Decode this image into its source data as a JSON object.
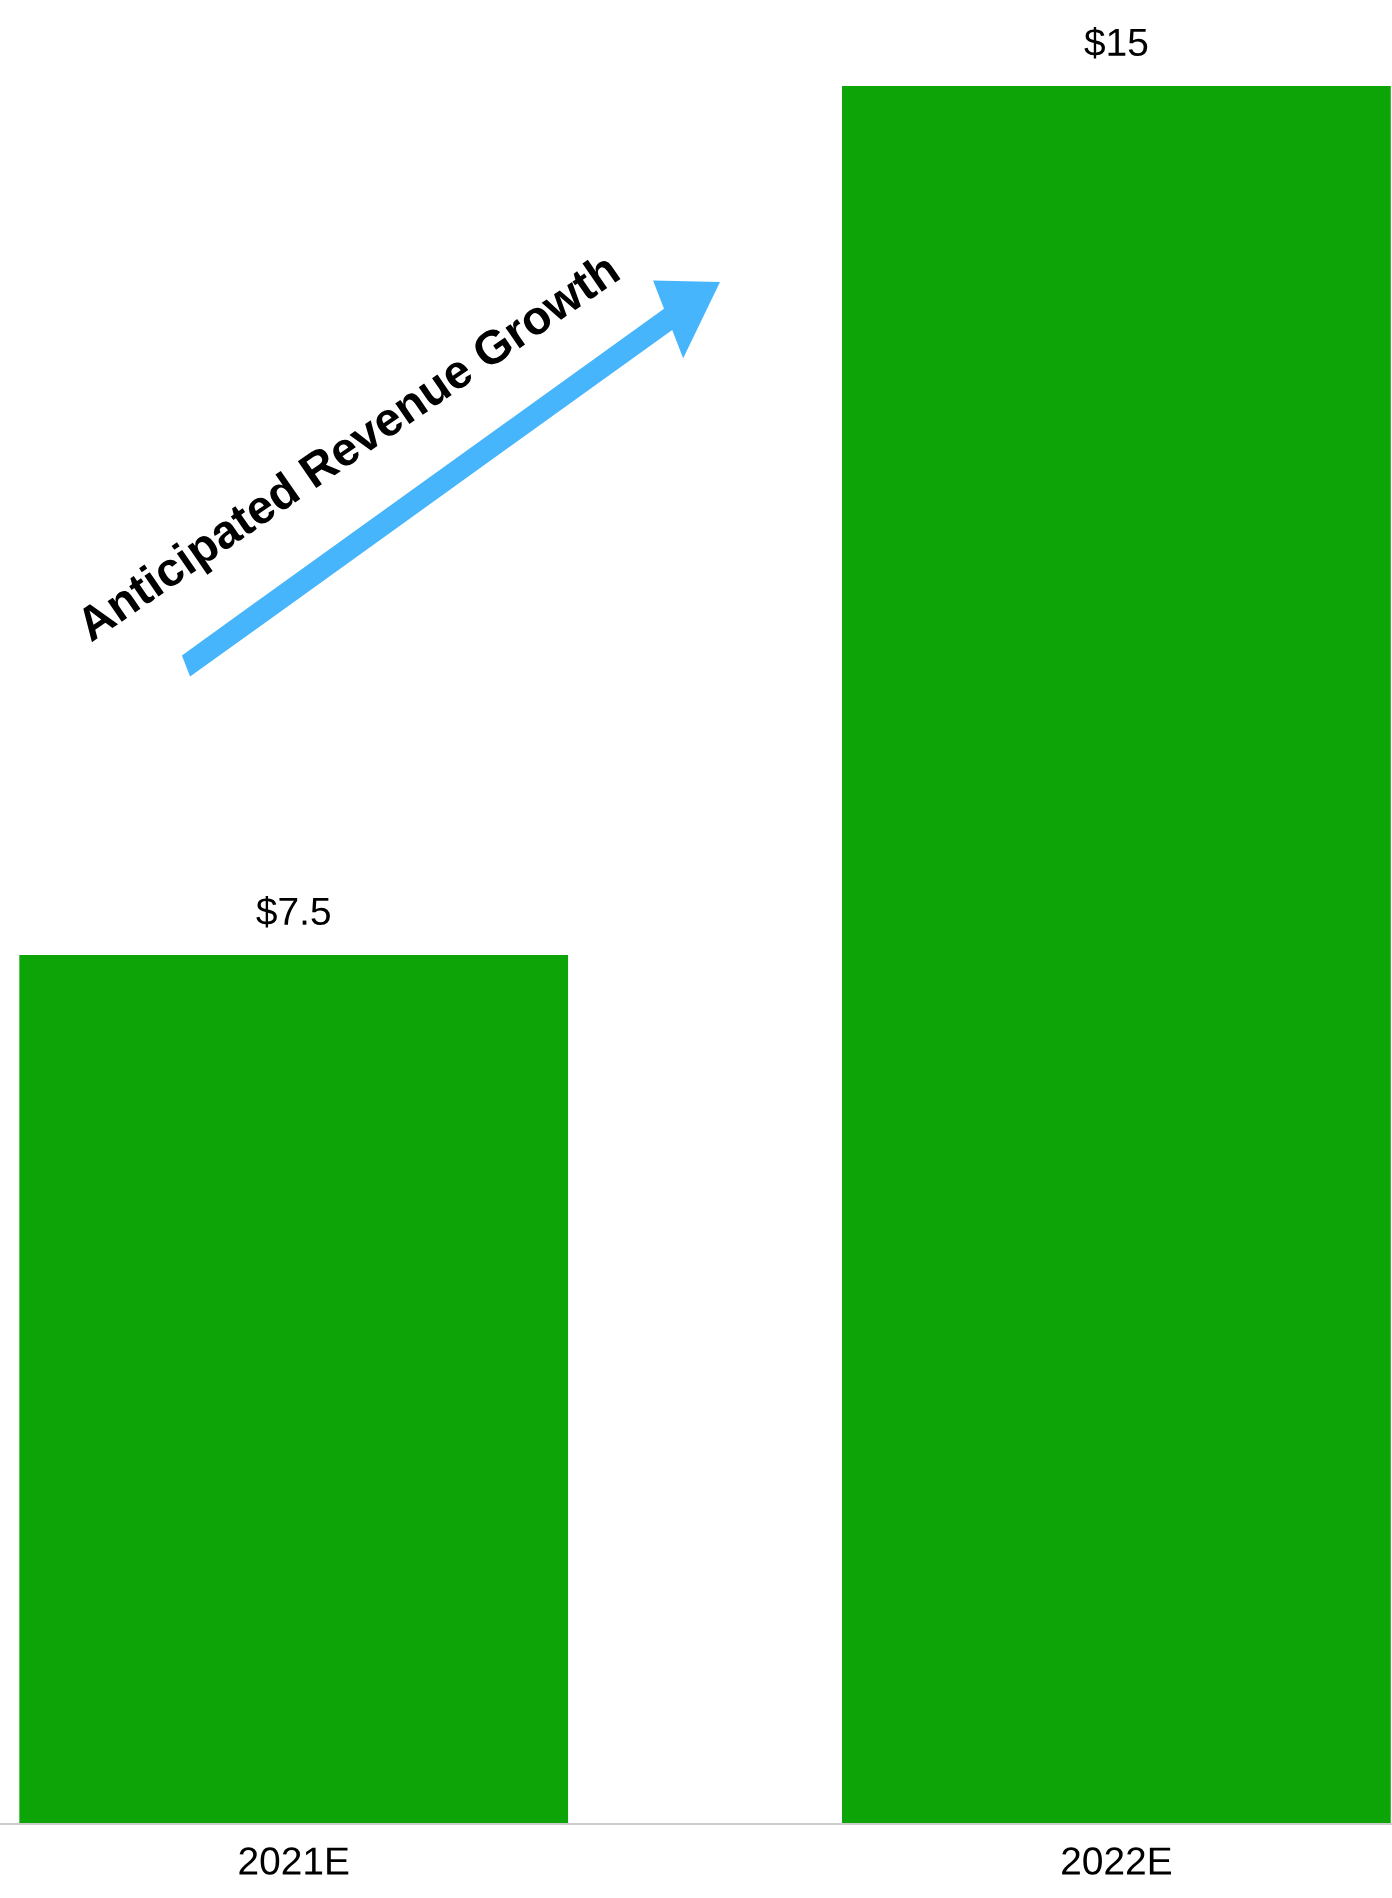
{
  "chart_data": {
    "type": "bar",
    "categories": [
      "2021E",
      "2022E"
    ],
    "values": [
      7.5,
      15
    ],
    "value_labels": [
      "$7.5",
      "$15"
    ],
    "color": "#0ca406",
    "annotations": [
      "Anticipated Revenue Growth"
    ],
    "grid": false,
    "legend": false
  }
}
